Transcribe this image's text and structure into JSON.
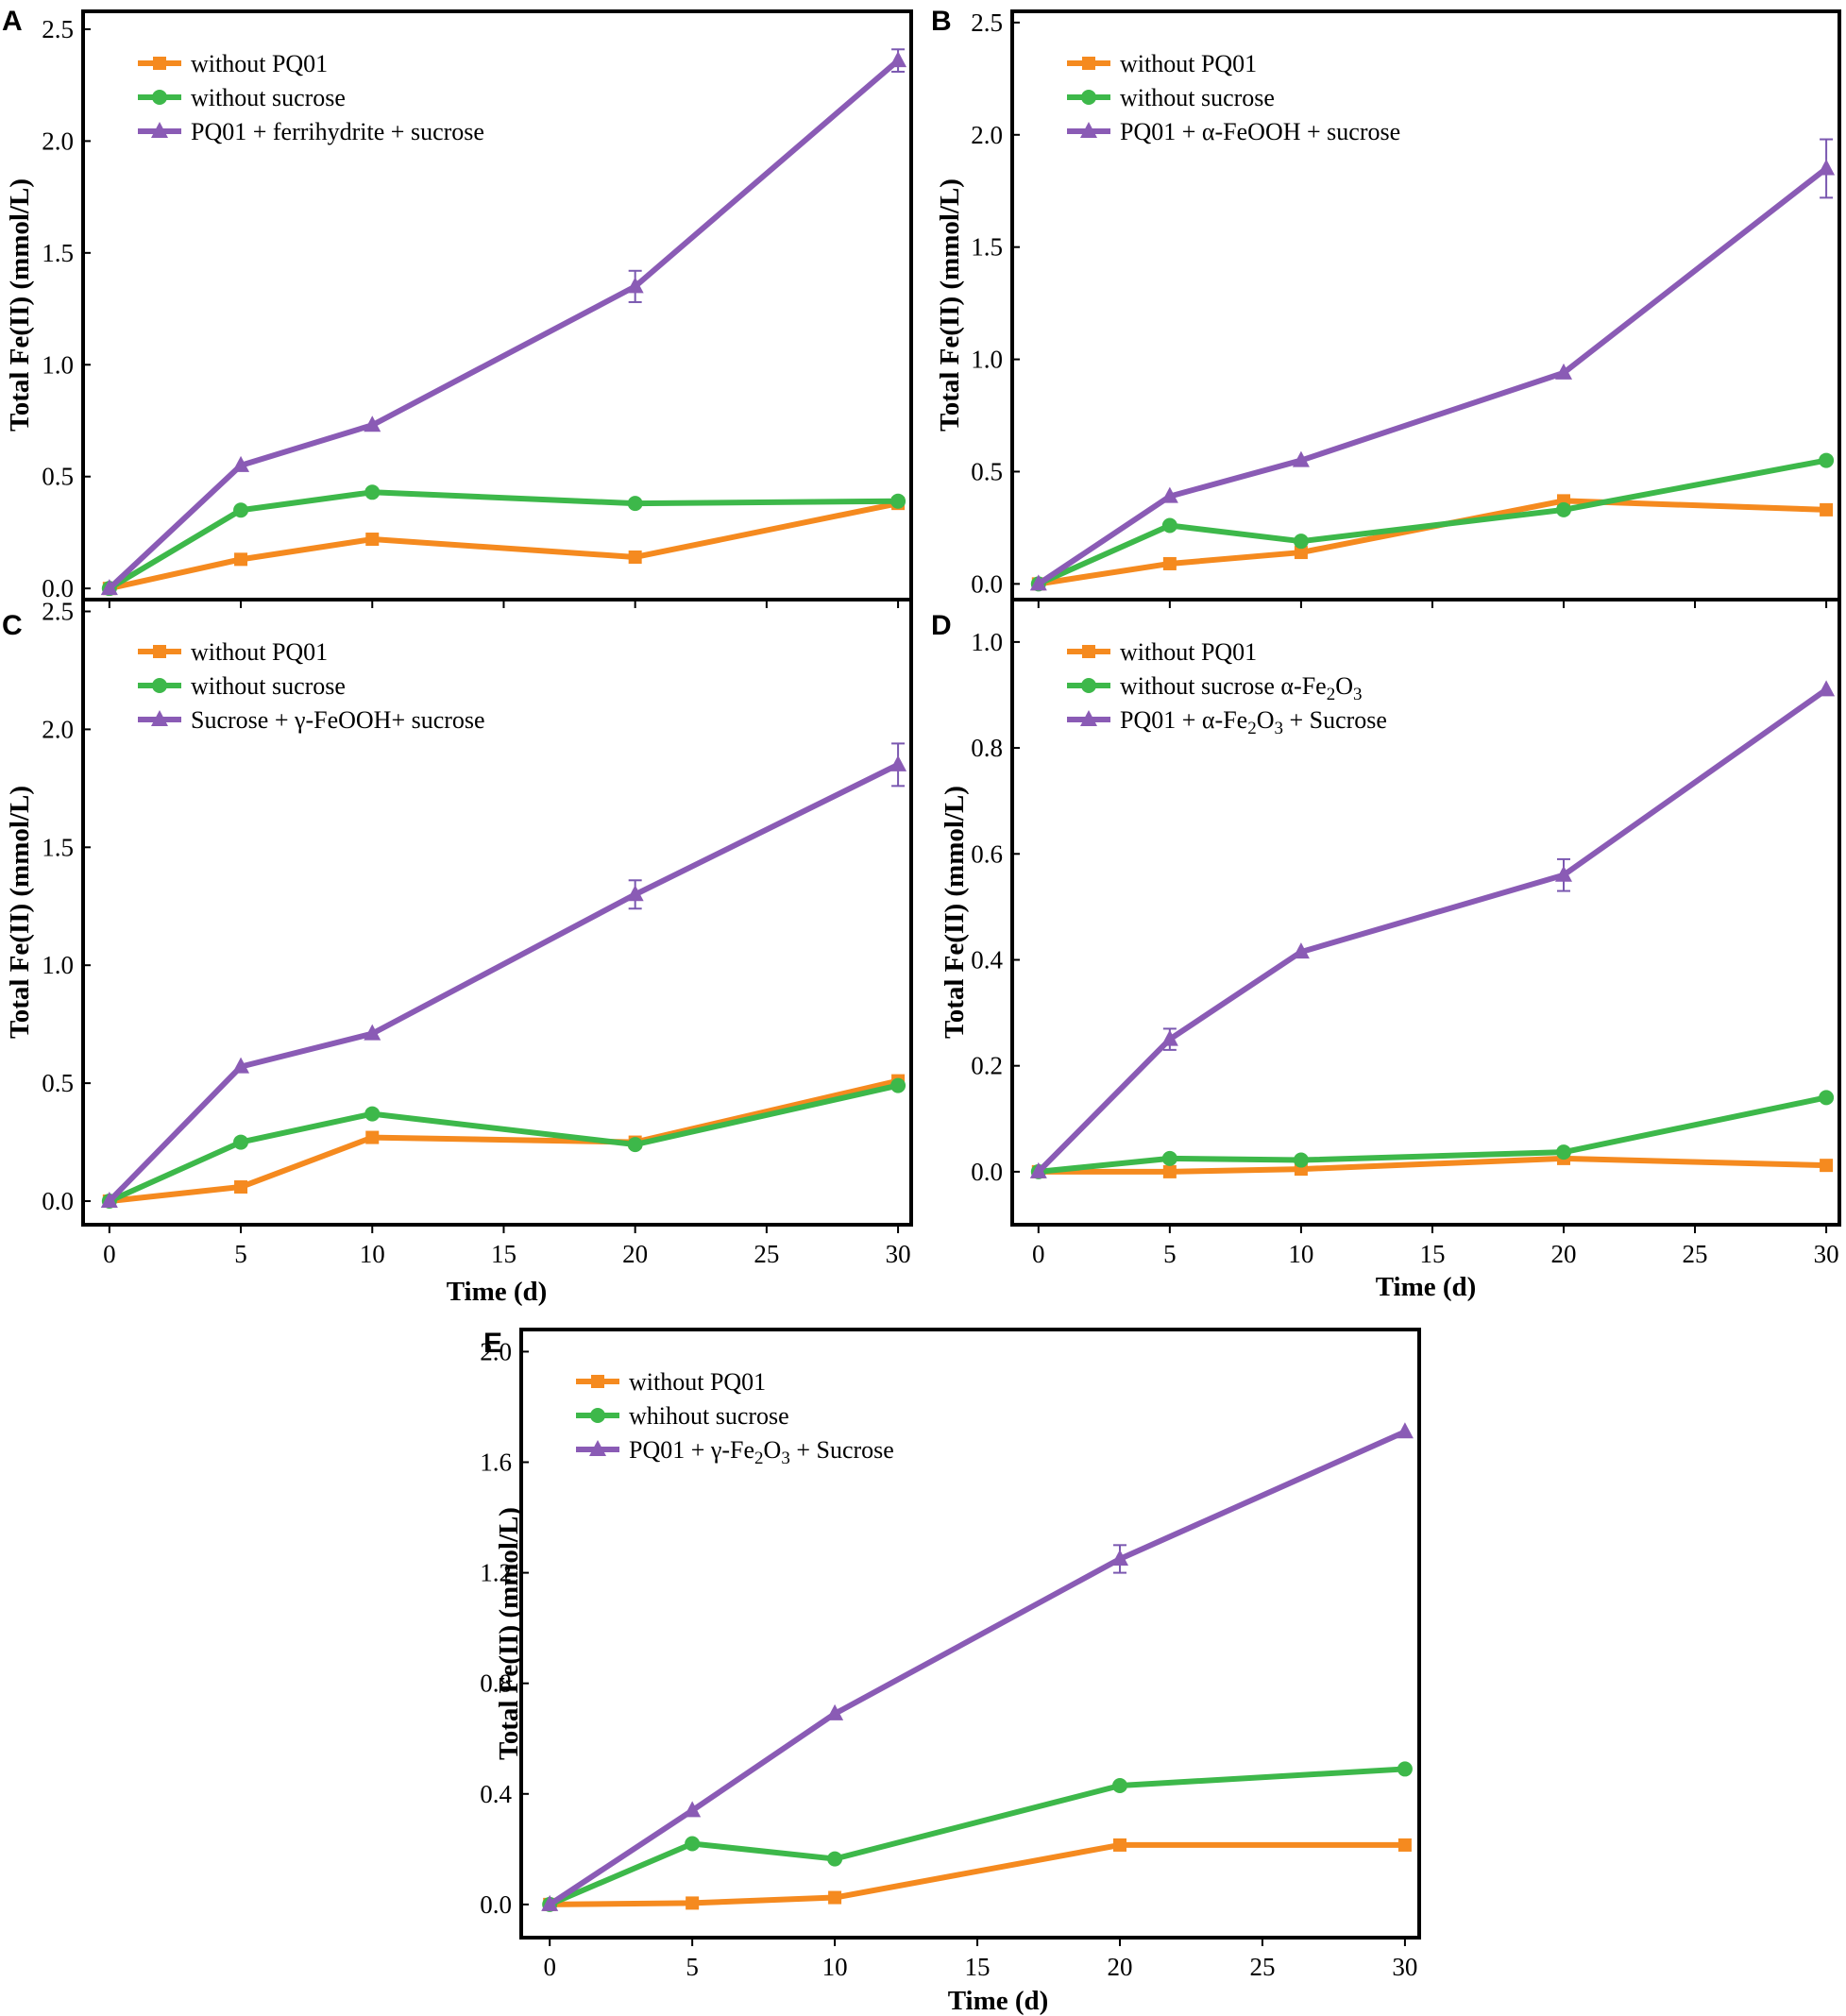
{
  "colors": {
    "without_pq01": "#F58A1F",
    "without_sucrose": "#3DB84A",
    "with_mineral": "#8A5BB5",
    "errorbar": "#7A58B0",
    "axis": "#000000"
  },
  "chart_data": [
    {
      "panel": "A",
      "type": "line",
      "x": [
        0,
        5,
        10,
        20,
        30
      ],
      "xlim": [
        -1,
        30.5
      ],
      "ylim": [
        -0.05,
        2.58
      ],
      "yticks": [
        0.0,
        0.5,
        1.0,
        1.5,
        2.0,
        2.5
      ],
      "ytick_labels": [
        "0.0",
        "0.5",
        "1.0",
        "1.5",
        "2.0",
        "2.5"
      ],
      "xticks": [
        0,
        5,
        10,
        15,
        20,
        25,
        30
      ],
      "xtick_labels": [],
      "ylabel": "Total Fe(II) (mmol/L)",
      "xlabel": "",
      "series": [
        {
          "name": "without PQ01",
          "marker": "square",
          "color_key": "without_pq01",
          "values": [
            0.0,
            0.13,
            0.22,
            0.14,
            0.38
          ]
        },
        {
          "name": "without sucrose",
          "marker": "circle",
          "color_key": "without_sucrose",
          "values": [
            0.0,
            0.35,
            0.43,
            0.38,
            0.39
          ]
        },
        {
          "name": "PQ01 + ferrihydrite + sucrose",
          "marker": "triangle",
          "color_key": "with_mineral",
          "values": [
            0.0,
            0.55,
            0.73,
            1.35,
            2.36
          ],
          "errors": [
            0,
            0,
            0,
            0.07,
            0.05
          ]
        }
      ]
    },
    {
      "panel": "B",
      "type": "line",
      "x": [
        0,
        5,
        10,
        20,
        30
      ],
      "xlim": [
        -1,
        30.5
      ],
      "ylim": [
        -0.07,
        2.55
      ],
      "yticks": [
        0.0,
        0.5,
        1.0,
        1.5,
        2.0,
        2.5
      ],
      "ytick_labels": [
        "0.0",
        "0.5",
        "1.0",
        "1.5",
        "2.0",
        "2.5"
      ],
      "xticks": [
        0,
        5,
        10,
        15,
        20,
        25,
        30
      ],
      "xtick_labels": [],
      "ylabel": "Total Fe(II) (mmol/L)",
      "xlabel": "",
      "series": [
        {
          "name": "without PQ01",
          "marker": "square",
          "color_key": "without_pq01",
          "values": [
            0.0,
            0.09,
            0.14,
            0.37,
            0.33
          ]
        },
        {
          "name": "without sucrose",
          "marker": "circle",
          "color_key": "without_sucrose",
          "values": [
            0.0,
            0.26,
            0.19,
            0.33,
            0.55
          ]
        },
        {
          "name": "PQ01 + α-FeOOH + sucrose",
          "marker": "triangle",
          "color_key": "with_mineral",
          "values": [
            0.0,
            0.39,
            0.55,
            0.94,
            1.85
          ],
          "errors": [
            0,
            0,
            0,
            0,
            0.13
          ]
        }
      ]
    },
    {
      "panel": "C",
      "type": "line",
      "x": [
        0,
        5,
        10,
        20,
        30
      ],
      "xlim": [
        -1,
        30.5
      ],
      "ylim": [
        -0.1,
        2.55
      ],
      "yticks": [
        0.0,
        0.5,
        1.0,
        1.5,
        2.0,
        2.5
      ],
      "ytick_labels": [
        "0.0",
        "0.5",
        "1.0",
        "1.5",
        "2.0",
        "2.5"
      ],
      "xticks": [
        0,
        5,
        10,
        15,
        20,
        25,
        30
      ],
      "xtick_labels": [
        "0",
        "5",
        "10",
        "15",
        "20",
        "25",
        "30"
      ],
      "ylabel": "Total Fe(II) (mmol/L)",
      "xlabel": "Time (d)",
      "series": [
        {
          "name": "without PQ01",
          "marker": "square",
          "color_key": "without_pq01",
          "values": [
            0.0,
            0.06,
            0.27,
            0.25,
            0.51
          ]
        },
        {
          "name": "without sucrose",
          "marker": "circle",
          "color_key": "without_sucrose",
          "values": [
            0.0,
            0.25,
            0.37,
            0.24,
            0.49
          ]
        },
        {
          "name": "Sucrose + γ-FeOOH+ sucrose",
          "marker": "triangle",
          "color_key": "with_mineral",
          "values": [
            0.0,
            0.57,
            0.71,
            1.3,
            1.85
          ],
          "errors": [
            0,
            0,
            0,
            0.06,
            0.09
          ]
        }
      ]
    },
    {
      "panel": "D",
      "type": "line",
      "x": [
        0,
        5,
        10,
        20,
        30
      ],
      "xlim": [
        -1,
        30.5
      ],
      "ylim": [
        -0.1,
        1.08
      ],
      "yticks": [
        0.0,
        0.2,
        0.4,
        0.6,
        0.8,
        1.0
      ],
      "ytick_labels": [
        "0.0",
        "0.2",
        "0.4",
        "0.6",
        "0.8",
        "1.0"
      ],
      "xticks": [
        0,
        5,
        10,
        15,
        20,
        25,
        30
      ],
      "xtick_labels": [
        "0",
        "5",
        "10",
        "15",
        "20",
        "25",
        "30"
      ],
      "ylabel": "Total Fe(II) (mmol/L)",
      "xlabel": "Time (d)",
      "series": [
        {
          "name": "without PQ01",
          "marker": "square",
          "color_key": "without_pq01",
          "values": [
            0.0,
            0.0,
            0.005,
            0.025,
            0.012
          ]
        },
        {
          "name": "without sucrose α-Fe2O3",
          "marker": "circle",
          "color_key": "without_sucrose",
          "values": [
            0.0,
            0.025,
            0.022,
            0.037,
            0.14
          ]
        },
        {
          "name": "PQ01 + α-Fe2O3 + Sucrose",
          "marker": "triangle",
          "color_key": "with_mineral",
          "values": [
            0.0,
            0.25,
            0.415,
            0.56,
            0.91
          ],
          "errors": [
            0,
            0.02,
            0,
            0.03,
            0
          ]
        }
      ]
    },
    {
      "panel": "E",
      "type": "line",
      "x": [
        0,
        5,
        10,
        20,
        30
      ],
      "xlim": [
        -1,
        30.5
      ],
      "ylim": [
        -0.12,
        2.08
      ],
      "yticks": [
        0.0,
        0.4,
        0.8,
        1.2,
        1.6,
        2.0
      ],
      "ytick_labels": [
        "0.0",
        "0.4",
        "0.8",
        "1.2",
        "1.6",
        "2.0"
      ],
      "xticks": [
        0,
        5,
        10,
        15,
        20,
        25,
        30
      ],
      "xtick_labels": [
        "0",
        "5",
        "10",
        "15",
        "20",
        "25",
        "30"
      ],
      "ylabel": "Total Fe(II) (mmol/L)",
      "xlabel": "Time (d)",
      "series": [
        {
          "name": "without PQ01",
          "marker": "square",
          "color_key": "without_pq01",
          "values": [
            0.0,
            0.005,
            0.025,
            0.215,
            0.215
          ]
        },
        {
          "name": "whihout sucrose",
          "marker": "circle",
          "color_key": "without_sucrose",
          "values": [
            0.0,
            0.22,
            0.165,
            0.43,
            0.49
          ]
        },
        {
          "name": "PQ01 + γ-Fe2O3 + Sucrose",
          "marker": "triangle",
          "color_key": "with_mineral",
          "values": [
            0.0,
            0.34,
            0.69,
            1.25,
            1.71
          ],
          "errors": [
            0,
            0,
            0,
            0.05,
            0
          ]
        }
      ]
    }
  ]
}
